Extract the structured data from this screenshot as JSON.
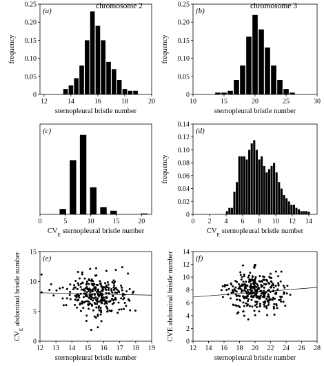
{
  "column_titles": [
    "chromosome 2",
    "chromosome 3"
  ],
  "chart_data": [
    {
      "id": "a",
      "panel_label": "(a)",
      "type": "bar",
      "title": "chromosome 2",
      "xlabel": "sternopleural bristle number",
      "ylabel": "frequency",
      "xlim": [
        11.7,
        20
      ],
      "ylim": [
        0,
        0.25
      ],
      "x_ticks": [
        12,
        14,
        16,
        18,
        20
      ],
      "y_ticks": [
        0,
        0.05,
        0.1,
        0.15,
        0.2,
        0.25
      ],
      "y_tick_labels": [
        "0",
        "0.05",
        "0.10",
        "0.15",
        "0.20",
        "0.25"
      ],
      "bin_width": 0.4,
      "x": [
        13.6,
        14.0,
        14.4,
        14.8,
        15.2,
        15.6,
        16.0,
        16.4,
        16.8,
        17.2,
        17.6,
        18.0,
        18.4,
        18.8
      ],
      "values": [
        0.015,
        0.025,
        0.045,
        0.08,
        0.15,
        0.23,
        0.19,
        0.15,
        0.09,
        0.07,
        0.04,
        0.015,
        0.01,
        0.01
      ]
    },
    {
      "id": "b",
      "panel_label": "(b)",
      "type": "bar",
      "title": "chromosome 3",
      "xlabel": "sternopleural bristle number",
      "ylabel": "frequency",
      "xlim": [
        10,
        30
      ],
      "ylim": [
        0,
        0.25
      ],
      "x_ticks": [
        10,
        15,
        20,
        25,
        30
      ],
      "y_ticks": [
        0,
        0.05,
        0.1,
        0.15,
        0.2,
        0.25
      ],
      "y_tick_labels": [
        "0",
        "0.05",
        "0.10",
        "0.15",
        "0.20",
        "0.25"
      ],
      "bin_width": 1,
      "x": [
        14,
        15,
        16,
        17,
        18,
        19,
        20,
        21,
        22,
        23,
        24,
        25,
        26
      ],
      "values": [
        0.005,
        0.005,
        0.01,
        0.04,
        0.08,
        0.16,
        0.22,
        0.18,
        0.13,
        0.08,
        0.04,
        0.015,
        0.005
      ]
    },
    {
      "id": "c",
      "panel_label": "(c)",
      "type": "bar",
      "xlabel": "CV",
      "xlabel_sub": "E",
      "xlabel_rest": " sternopleural bristle number",
      "ylabel": "",
      "xlim": [
        0,
        22
      ],
      "ylim": [
        0,
        0.5
      ],
      "x_ticks": [
        0,
        5,
        10,
        15,
        20
      ],
      "y_ticks": [],
      "bin_width": 1.5,
      "x": [
        4.5,
        6.5,
        8.5,
        10.5,
        12.5,
        14.5,
        16.5,
        18.5,
        20.5
      ],
      "values": [
        0.03,
        0.3,
        0.44,
        0.15,
        0.04,
        0.02,
        0,
        0,
        0.005
      ]
    },
    {
      "id": "d",
      "panel_label": "(d)",
      "type": "bar",
      "xlabel": "CV",
      "xlabel_sub": "E",
      "xlabel_rest": " sternopleural bristle number",
      "ylabel": "frequency",
      "xlim": [
        0,
        15
      ],
      "ylim": [
        0,
        0.14
      ],
      "x_ticks": [
        0,
        2,
        4,
        6,
        8,
        10,
        12,
        14
      ],
      "y_ticks": [
        0,
        0.02,
        0.04,
        0.06,
        0.08,
        0.1,
        0.12,
        0.14
      ],
      "y_tick_labels": [
        "0",
        "0.02",
        "0.04",
        "0.06",
        "0.08",
        "0.10",
        "0.12",
        "0.14"
      ],
      "bin_width": 0.3,
      "x": [
        4.1,
        4.4,
        4.7,
        5.0,
        5.3,
        5.6,
        5.9,
        6.2,
        6.5,
        6.8,
        7.1,
        7.4,
        7.7,
        8.0,
        8.3,
        8.6,
        8.9,
        9.2,
        9.5,
        9.8,
        10.1,
        10.4,
        10.7,
        11.0,
        11.3,
        11.6,
        11.9,
        12.2,
        12.5,
        12.8,
        13.1,
        13.4,
        13.7,
        14.0
      ],
      "values": [
        0.005,
        0.01,
        0.01,
        0.035,
        0.05,
        0.09,
        0.09,
        0.09,
        0.085,
        0.1,
        0.11,
        0.115,
        0.1,
        0.085,
        0.09,
        0.075,
        0.065,
        0.07,
        0.075,
        0.08,
        0.065,
        0.05,
        0.04,
        0.03,
        0.025,
        0.02,
        0.015,
        0.015,
        0.01,
        0.008,
        0.005,
        0.005,
        0.005,
        0.004
      ]
    },
    {
      "id": "e",
      "panel_label": "(e)",
      "type": "scatter",
      "xlabel": "sternopleural bristle number",
      "ylabel": "CV",
      "ylabel_sub": "E",
      "ylabel_rest": " abdominal bristle number",
      "xlim": [
        12,
        19
      ],
      "ylim": [
        0,
        15
      ],
      "x_ticks": [
        12,
        13,
        14,
        15,
        16,
        17,
        18,
        19
      ],
      "y_ticks": [
        0,
        5,
        10,
        15
      ],
      "trend": {
        "x": [
          12,
          19
        ],
        "y": [
          8.1,
          7.7
        ]
      },
      "cloud": {
        "count": 300,
        "x_mean": 15.6,
        "x_sd": 1.0,
        "y_mean": 7.8,
        "y_sd": 1.6
      }
    },
    {
      "id": "f",
      "panel_label": "(f)",
      "type": "scatter",
      "xlabel": "sternopleural bristle number",
      "ylabel": "CVE abdominal bristle number",
      "xlim": [
        12,
        28
      ],
      "ylim": [
        0,
        14
      ],
      "x_ticks": [
        12,
        14,
        16,
        18,
        20,
        22,
        24,
        26,
        28
      ],
      "y_ticks": [
        0,
        2,
        4,
        6,
        8,
        10,
        12,
        14
      ],
      "trend": {
        "x": [
          12,
          28
        ],
        "y": [
          6.9,
          8.4
        ]
      },
      "cloud": {
        "count": 320,
        "x_mean": 20.0,
        "x_sd": 1.9,
        "y_mean": 7.8,
        "y_sd": 1.6
      }
    }
  ]
}
